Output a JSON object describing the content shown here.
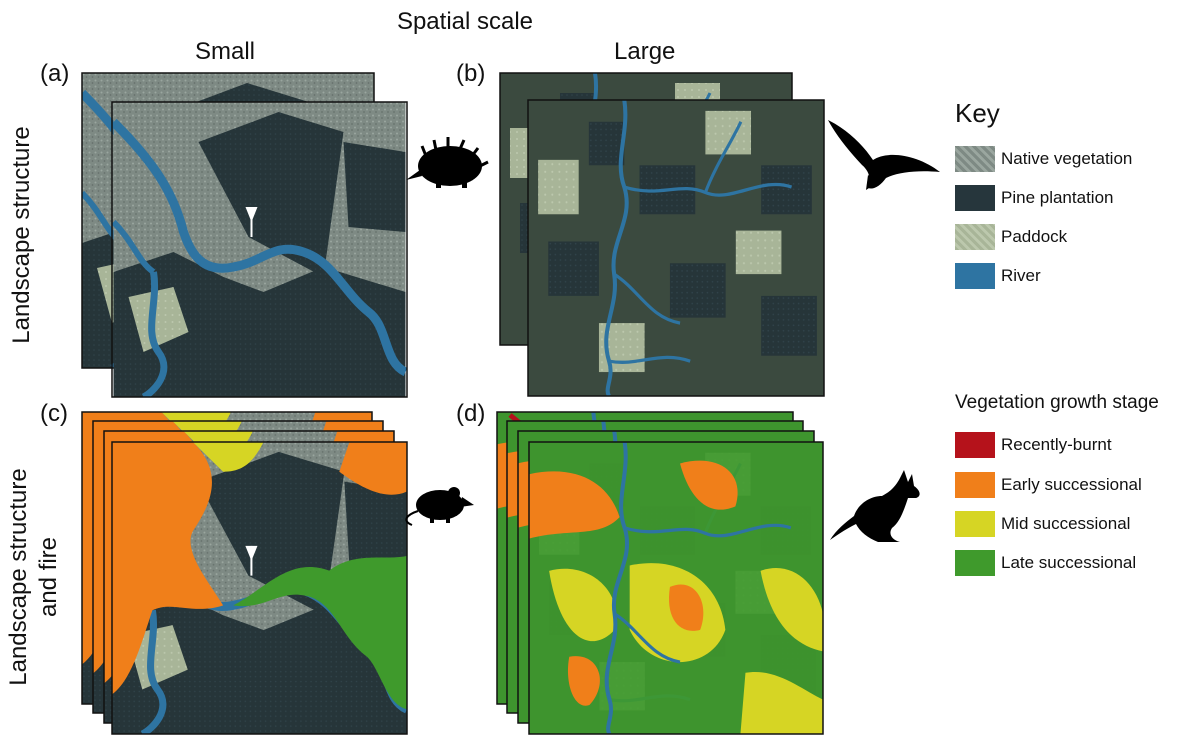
{
  "figure": {
    "title": "Spatial scale",
    "columns": {
      "small": "Small",
      "large": "Large"
    },
    "rows": {
      "structure": "Landscape structure",
      "structure_fire_line1": "Landscape structure",
      "structure_fire_line2": "and fire"
    },
    "panel_labels": {
      "a": "(a)",
      "b": "(b)",
      "c": "(c)",
      "d": "(d)"
    }
  },
  "key": {
    "title": "Key",
    "items": [
      {
        "label": "Native vegetation",
        "color": "#8a9690"
      },
      {
        "label": "Pine plantation",
        "color": "#26363c"
      },
      {
        "label": "Paddock",
        "color": "#a9b79a"
      },
      {
        "label": "River",
        "color": "#2e74a2"
      }
    ]
  },
  "growth_stage": {
    "title": "Vegetation growth stage",
    "items": [
      {
        "label": "Recently-burnt",
        "color": "#b5121b"
      },
      {
        "label": "Early successional",
        "color": "#f07f1a"
      },
      {
        "label": "Mid successional",
        "color": "#d6d524"
      },
      {
        "label": "Late successional",
        "color": "#3f9a2c"
      }
    ]
  },
  "icons": {
    "a": "echidna-icon",
    "b": "eagle-icon",
    "c": "mouse-icon",
    "d": "kangaroo-icon"
  }
}
